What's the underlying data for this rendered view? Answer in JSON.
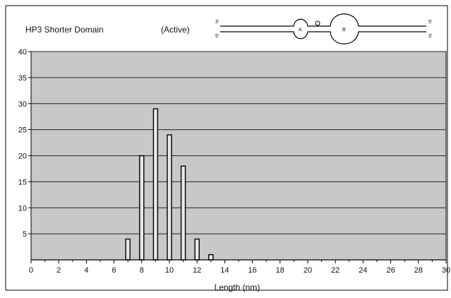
{
  "chart_data": {
    "type": "bar",
    "title": "HP3 Shorter Domain",
    "subtitle": "(Active)",
    "xlabel": "Length (nm)",
    "ylabel": "",
    "xlim": [
      0,
      30
    ],
    "ylim": [
      0,
      40
    ],
    "x_ticks": [
      0,
      2,
      4,
      6,
      8,
      10,
      12,
      14,
      16,
      18,
      20,
      22,
      24,
      26,
      28,
      30
    ],
    "y_ticks": [
      5,
      10,
      15,
      20,
      25,
      30,
      35,
      40
    ],
    "grid": "horizontal",
    "legend": "none",
    "x": [
      7,
      8,
      9,
      10,
      11,
      12,
      13
    ],
    "values": [
      4,
      20,
      29,
      24,
      18,
      4,
      1
    ],
    "plot_background": "#c8c8c8",
    "bar_color": "#e8e8e8"
  },
  "diagram": {
    "loop_a_label": "A",
    "loop_b_label": "B",
    "left_top_end": "3'",
    "left_bottom_end": "5'",
    "right_top_end": "5'",
    "right_bottom_end": "3'"
  }
}
